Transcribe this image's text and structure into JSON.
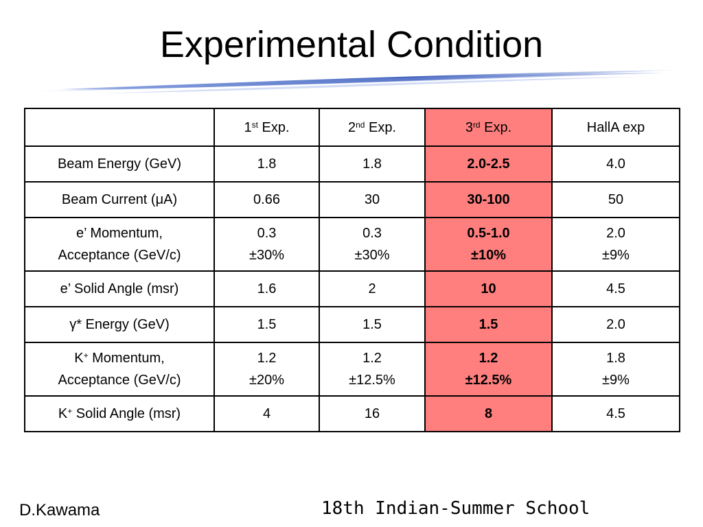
{
  "title": "Experimental Condition",
  "header": {
    "c1_base": "1",
    "c1_sup": "st",
    "c1_rest": " Exp.",
    "c2_base": "2",
    "c2_sup": "nd",
    "c2_rest": " Exp.",
    "c3_base": "3",
    "c3_sup": "rd",
    "c3_rest": " Exp.",
    "c4": "HallA exp"
  },
  "rows": {
    "beam_energy": {
      "label": "Beam Energy (GeV)",
      "v1": "1.8",
      "v2": "1.8",
      "v3": "2.0-2.5",
      "v4": "4.0"
    },
    "beam_current": {
      "label": "Beam Current (μA)",
      "v1": "0.66",
      "v2": "30",
      "v3": "30-100",
      "v4": "50"
    },
    "e_momentum": {
      "label1": "e’ Momentum,",
      "label2": "Acceptance (GeV/c)",
      "v1a": "0.3",
      "v1b": "±30%",
      "v2a": "0.3",
      "v2b": "±30%",
      "v3a": "0.5-1.0",
      "v3b": "±10%",
      "v4a": "2.0",
      "v4b": "±9%"
    },
    "e_solid": {
      "label": "e’ Solid Angle (msr)",
      "v1": "1.6",
      "v2": "2",
      "v3": "10",
      "v4": "4.5"
    },
    "gamma_energy": {
      "label": "γ* Energy (GeV)",
      "v1": "1.5",
      "v2": "1.5",
      "v3": "1.5",
      "v4": "2.0"
    },
    "k_momentum": {
      "label1_base": "K",
      "label1_sup": "+",
      "label1_rest": " Momentum,",
      "label2": "Acceptance (GeV/c)",
      "v1a": "1.2",
      "v1b": "±20%",
      "v2a": "1.2",
      "v2b": "±12.5%",
      "v3a": "1.2",
      "v3b": "±12.5%",
      "v4a": "1.8",
      "v4b": "±9%"
    },
    "k_solid": {
      "label_base": "K",
      "label_sup": "+",
      "label_rest": " Solid Angle (msr)",
      "v1": "4",
      "v2": "16",
      "v3": "8",
      "v4": "4.5"
    }
  },
  "footer": {
    "author": "D.Kawama",
    "event": "18th Indian-Summer School"
  },
  "colors": {
    "highlight": "#ff7f7f",
    "swoosh": "#3a5bb8"
  }
}
